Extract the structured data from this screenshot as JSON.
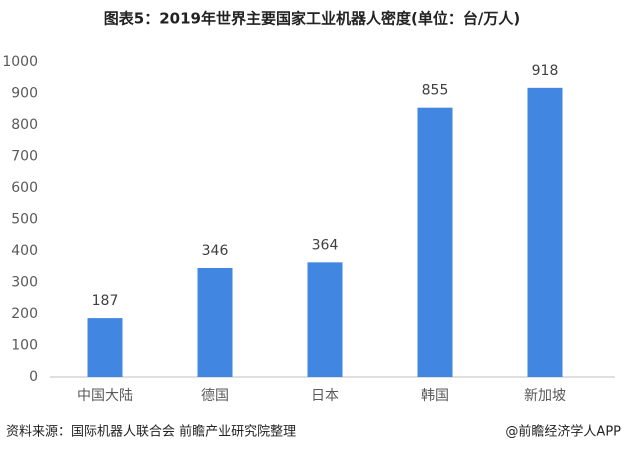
{
  "chart_data": {
    "type": "bar",
    "title": "图表5：2019年世界主要国家工业机器人密度(单位：台/万人)",
    "categories": [
      "中国大陆",
      "德国",
      "日本",
      "韩国",
      "新加坡"
    ],
    "values": [
      187,
      346,
      364,
      855,
      918
    ],
    "color": "#4186e0",
    "ylim": [
      0,
      1000
    ],
    "yticks": [
      0,
      100,
      200,
      300,
      400,
      500,
      600,
      700,
      800,
      900,
      1000
    ],
    "grid": false,
    "source": "资料来源：国际机器人联合会 前瞻产业研究院整理",
    "credit": "@前瞻经济学人APP"
  }
}
